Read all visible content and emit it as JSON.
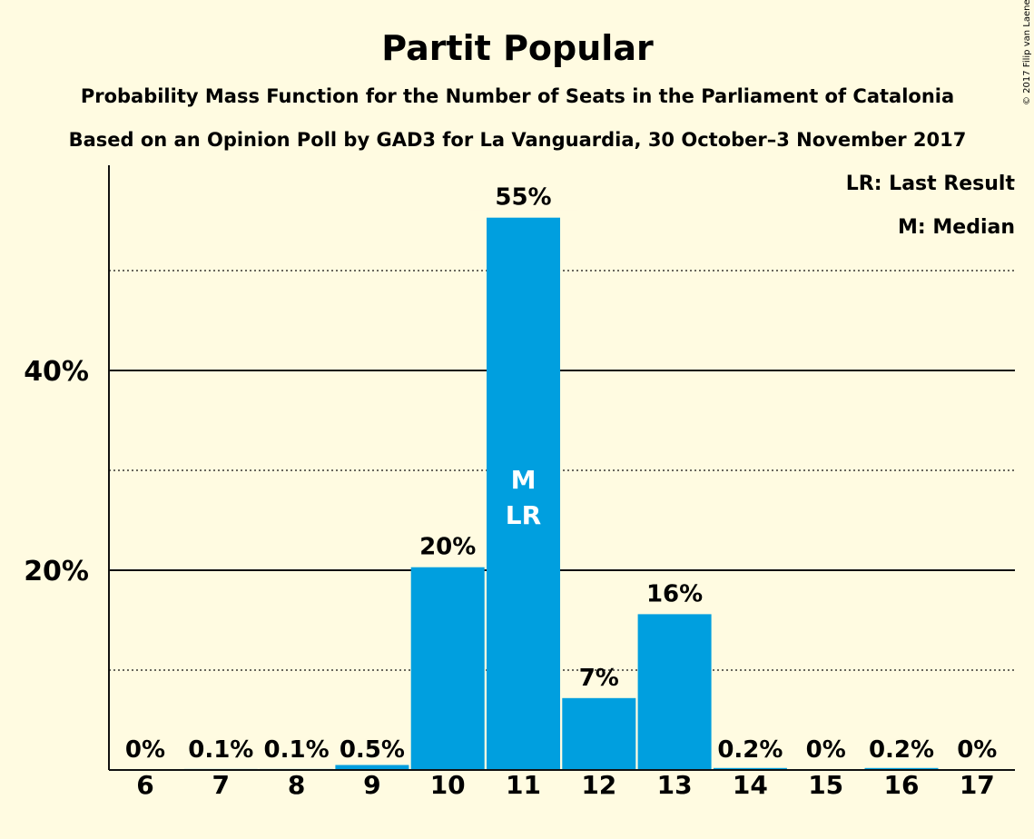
{
  "chart_data": {
    "type": "bar",
    "title": "Partit Popular",
    "subtitle_1": "Probability Mass Function for the Number of Seats in the Parliament of Catalonia",
    "subtitle_2": "Based on an Opinion Poll by GAD3 for La Vanguardia, 30 October–3 November 2017",
    "legend": [
      "LR: Last Result",
      "M: Median"
    ],
    "copyright": "© 2017 Filip van Laenen",
    "categories": [
      "6",
      "7",
      "8",
      "9",
      "10",
      "11",
      "12",
      "13",
      "14",
      "15",
      "16",
      "17"
    ],
    "values": [
      0,
      0.1,
      0.1,
      0.5,
      20.3,
      55.3,
      7.2,
      15.6,
      0.2,
      0,
      0.2,
      0
    ],
    "data_labels": [
      "0%",
      "0.1%",
      "0.1%",
      "0.5%",
      "20%",
      "55%",
      "7%",
      "16%",
      "0.2%",
      "0%",
      "0.2%",
      "0%"
    ],
    "bar_annotations": {
      "11": [
        "M",
        "LR"
      ]
    },
    "yticks": [
      {
        "value": 20,
        "label": "20%"
      },
      {
        "value": 40,
        "label": "40%"
      }
    ],
    "minor_gridlines": [
      10,
      30,
      50
    ],
    "ylim": [
      0,
      60
    ],
    "bar_color": "#009fdf",
    "background_color": "#fffbe1",
    "legend_position": "top-right"
  }
}
